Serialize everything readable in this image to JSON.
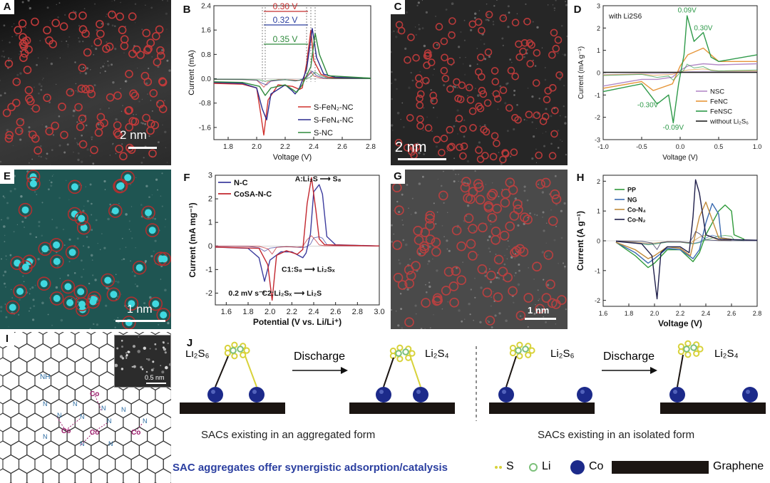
{
  "panels": {
    "A": {
      "label": "A",
      "scale": "2 nm"
    },
    "B": {
      "label": "B"
    },
    "C": {
      "label": "C",
      "scale": "2 nm"
    },
    "D": {
      "label": "D"
    },
    "E": {
      "label": "E",
      "scale": "1 nm"
    },
    "F": {
      "label": "F"
    },
    "G": {
      "label": "G",
      "scale": "1 nm"
    },
    "H": {
      "label": "H"
    },
    "I": {
      "label": "I",
      "inset_scale": "0.5 nm",
      "atoms": {
        "co": "Co",
        "n": "N",
        "nh": "NH"
      }
    },
    "J": {
      "label": "J"
    }
  },
  "chart_data": [
    {
      "panel": "B",
      "type": "line",
      "xlabel": "Voltage (V)",
      "ylabel": "Current (mA)",
      "xlim": [
        1.7,
        2.8
      ],
      "ylim": [
        -2.0,
        2.4
      ],
      "xticks": [
        "1.8",
        "2.0",
        "2.2",
        "2.4",
        "2.6",
        "2.8"
      ],
      "yticks": [
        "2.4",
        "1.6",
        "0.8",
        "0.0",
        "-0.8",
        "-1.6"
      ],
      "annotations": [
        "0.30 V",
        "0.32 V",
        "0.35 V"
      ],
      "series": [
        {
          "name": "S-FeN2-NC",
          "color": "#d0302c",
          "x": [
            1.7,
            1.9,
            2.0,
            2.03,
            2.05,
            2.08,
            2.15,
            2.25,
            2.3,
            2.32,
            2.35,
            2.38,
            2.4,
            2.45,
            2.5,
            2.6,
            2.8
          ],
          "y": [
            -0.15,
            -0.18,
            -0.3,
            -1.2,
            -1.85,
            -0.7,
            -0.2,
            -0.25,
            -0.35,
            -0.3,
            0.5,
            1.6,
            0.6,
            0.15,
            0.05,
            0.02,
            0.02
          ]
        },
        {
          "name": "S-FeN4-NC",
          "color": "#2a2a8e",
          "x": [
            1.7,
            1.9,
            2.0,
            2.04,
            2.07,
            2.1,
            2.2,
            2.25,
            2.27,
            2.3,
            2.35,
            2.39,
            2.42,
            2.47,
            2.55,
            2.8
          ],
          "y": [
            -0.12,
            -0.15,
            -0.3,
            -1.0,
            -1.35,
            -0.5,
            -0.2,
            -0.4,
            -0.5,
            -0.3,
            0.3,
            1.65,
            0.7,
            0.15,
            0.05,
            0.02
          ]
        },
        {
          "name": "S-NC",
          "color": "#2f8a3c",
          "x": [
            1.7,
            1.9,
            2.02,
            2.06,
            2.1,
            2.2,
            2.25,
            2.28,
            2.32,
            2.38,
            2.41,
            2.44,
            2.5,
            2.8
          ],
          "y": [
            -0.1,
            -0.12,
            -0.25,
            -0.55,
            -0.3,
            -0.2,
            -0.35,
            -0.45,
            -0.2,
            0.4,
            1.5,
            0.8,
            0.1,
            0.02
          ]
        }
      ],
      "legend": [
        "S-FeN₂-NC",
        "S-FeN₄-NC",
        "S-NC"
      ]
    },
    {
      "panel": "D",
      "type": "line",
      "note": "with Li2S6",
      "xlabel": "Voltage (V)",
      "ylabel": "Current (mA g⁻¹)",
      "xlim": [
        -1.0,
        1.0
      ],
      "ylim": [
        -3,
        3
      ],
      "xticks": [
        "-1.0",
        "-0.5",
        "0.0",
        "0.5",
        "1.0"
      ],
      "yticks": [
        "3",
        "2",
        "1",
        "0",
        "-1",
        "-2",
        "-3"
      ],
      "annotations": [
        "0.09V",
        "0.30V",
        "-0.30V",
        "-0.09V"
      ],
      "series": [
        {
          "name": "NSC",
          "color": "#b48bc8",
          "x": [
            -1.0,
            -0.5,
            -0.3,
            -0.1,
            0.0,
            0.1,
            0.3,
            0.5,
            1.0
          ],
          "y": [
            -0.6,
            -0.3,
            -0.3,
            -0.2,
            0.1,
            0.3,
            0.4,
            0.35,
            0.4
          ]
        },
        {
          "name": "FeNC",
          "color": "#e6963a",
          "x": [
            -1.0,
            -0.5,
            -0.35,
            -0.1,
            0.0,
            0.1,
            0.3,
            0.5,
            1.0
          ],
          "y": [
            -0.7,
            -0.4,
            -0.8,
            -0.5,
            0.3,
            0.8,
            1.1,
            0.5,
            0.5
          ]
        },
        {
          "name": "FeNSC",
          "color": "#2f9a4a",
          "x": [
            -1.0,
            -0.5,
            -0.3,
            -0.15,
            -0.09,
            -0.02,
            0.05,
            0.09,
            0.18,
            0.3,
            0.4,
            0.5,
            1.0
          ],
          "y": [
            -0.85,
            -0.5,
            -1.4,
            -1.0,
            -2.25,
            -0.5,
            0.8,
            2.55,
            1.4,
            1.8,
            0.7,
            0.5,
            0.8
          ]
        },
        {
          "name": "without Li2S6",
          "color": "#222222",
          "x": [
            -1.0,
            1.0
          ],
          "y": [
            0.02,
            0.02
          ]
        }
      ],
      "legend": [
        "NSC",
        "FeNC",
        "FeNSC",
        "without Li₂S₆"
      ]
    },
    {
      "panel": "F",
      "type": "line",
      "xlabel": "Potential (V vs. Li/Li⁺)",
      "ylabel": "Current (mA mg⁻¹)",
      "xlim": [
        1.5,
        3.0
      ],
      "ylim": [
        -2.5,
        3.0
      ],
      "xticks": [
        "1.6",
        "1.8",
        "2.0",
        "2.2",
        "2.4",
        "2.6",
        "2.8",
        "3.0"
      ],
      "yticks": [
        "3",
        "2",
        "1",
        "0",
        "-1",
        "-2"
      ],
      "annotations": [
        "A:Li₂S ⟶ S₈",
        "C1:S₈ ⟶ Li₂Sₓ",
        "C2:Li₂Sₓ ⟶ Li₂S",
        "0.2 mV s⁻¹"
      ],
      "series": [
        {
          "name": "N-C",
          "color": "#3d3d9e",
          "x": [
            1.5,
            1.8,
            1.9,
            1.95,
            2.0,
            2.1,
            2.2,
            2.3,
            2.33,
            2.37,
            2.4,
            2.45,
            2.48,
            2.52,
            2.6,
            3.0
          ],
          "y": [
            -0.05,
            -0.1,
            -0.5,
            -1.5,
            -0.6,
            -0.25,
            -0.25,
            -0.5,
            -0.3,
            0.5,
            2.3,
            2.6,
            2.2,
            0.4,
            0.05,
            0.0
          ]
        },
        {
          "name": "CoSA-N-C",
          "color": "#c2262e",
          "x": [
            1.5,
            1.9,
            1.98,
            2.02,
            2.06,
            2.15,
            2.25,
            2.3,
            2.34,
            2.38,
            2.42,
            2.45,
            2.5,
            3.0
          ],
          "y": [
            -0.05,
            -0.1,
            -0.8,
            -2.3,
            -0.4,
            -0.2,
            -0.35,
            -0.15,
            1.8,
            2.9,
            1.5,
            0.3,
            0.05,
            0.0
          ]
        }
      ],
      "legend": [
        "N-C",
        "CoSA-N-C"
      ]
    },
    {
      "panel": "H",
      "type": "line",
      "xlabel": "Voltage (V)",
      "ylabel": "Current (A g⁻¹)",
      "xlim": [
        1.6,
        2.8
      ],
      "ylim": [
        -2.2,
        2.2
      ],
      "xticks": [
        "1.6",
        "1.8",
        "2.0",
        "2.2",
        "2.4",
        "2.6",
        "2.8"
      ],
      "yticks": [
        "2",
        "1",
        "0",
        "-1",
        "-2"
      ],
      "series": [
        {
          "name": "PP",
          "color": "#2f9a3a",
          "x": [
            1.7,
            1.85,
            1.95,
            2.0,
            2.1,
            2.2,
            2.3,
            2.35,
            2.4,
            2.5,
            2.55,
            2.6,
            2.62,
            2.7
          ],
          "y": [
            -0.05,
            -0.5,
            -0.9,
            -0.75,
            -0.3,
            -0.3,
            -0.7,
            -0.4,
            0.2,
            1.0,
            1.2,
            1.0,
            0.2,
            0.05
          ]
        },
        {
          "name": "NG",
          "color": "#3a6ab0",
          "x": [
            1.7,
            1.85,
            1.95,
            2.0,
            2.1,
            2.2,
            2.3,
            2.35,
            2.4,
            2.45,
            2.5,
            2.52,
            2.6
          ],
          "y": [
            -0.05,
            -0.4,
            -0.75,
            -0.6,
            -0.25,
            -0.3,
            -0.6,
            -0.3,
            0.6,
            1.25,
            0.9,
            0.1,
            0.05
          ]
        },
        {
          "name": "Co-N4",
          "color": "#c08a3a",
          "x": [
            1.7,
            1.85,
            1.95,
            2.0,
            2.1,
            2.2,
            2.28,
            2.35,
            2.4,
            2.45,
            2.5,
            2.6
          ],
          "y": [
            -0.05,
            -0.3,
            -0.6,
            -0.5,
            -0.2,
            -0.25,
            -0.5,
            0.8,
            1.3,
            0.7,
            0.1,
            0.05
          ]
        },
        {
          "name": "Co-N2",
          "color": "#1e1e4a",
          "x": [
            1.7,
            1.9,
            1.98,
            2.01,
            2.02,
            2.05,
            2.1,
            2.2,
            2.27,
            2.3,
            2.32,
            2.35,
            2.4,
            2.5,
            2.8
          ],
          "y": [
            -0.02,
            -0.1,
            -0.5,
            -1.6,
            -1.95,
            -0.4,
            -0.2,
            -0.2,
            -0.4,
            0.8,
            2.05,
            1.6,
            0.2,
            0.05,
            0.02
          ]
        }
      ],
      "legend": [
        "PP",
        "NG",
        "Co-N₄",
        "Co-N₂"
      ]
    }
  ],
  "schematic": {
    "labels": {
      "li2s6": "Li₂S₆",
      "li2s4": "Li₂S₄",
      "discharge": "Discharge"
    },
    "caption_left": "SACs existing in an aggregated form",
    "caption_right": "SACs existing in an isolated form",
    "bottom_caption": "SAC aggregates offer synergistic adsorption/catalysis",
    "legend": {
      "s": "S",
      "li": "Li",
      "co": "Co",
      "graphene": "Graphene"
    }
  },
  "colors": {
    "accent_blue": "#2b3fa0",
    "circle_red": "#c33a3a",
    "co_sphere": "#1c2a8a",
    "sulfur": "#d8d23a",
    "lithium": "#7cc07a"
  }
}
